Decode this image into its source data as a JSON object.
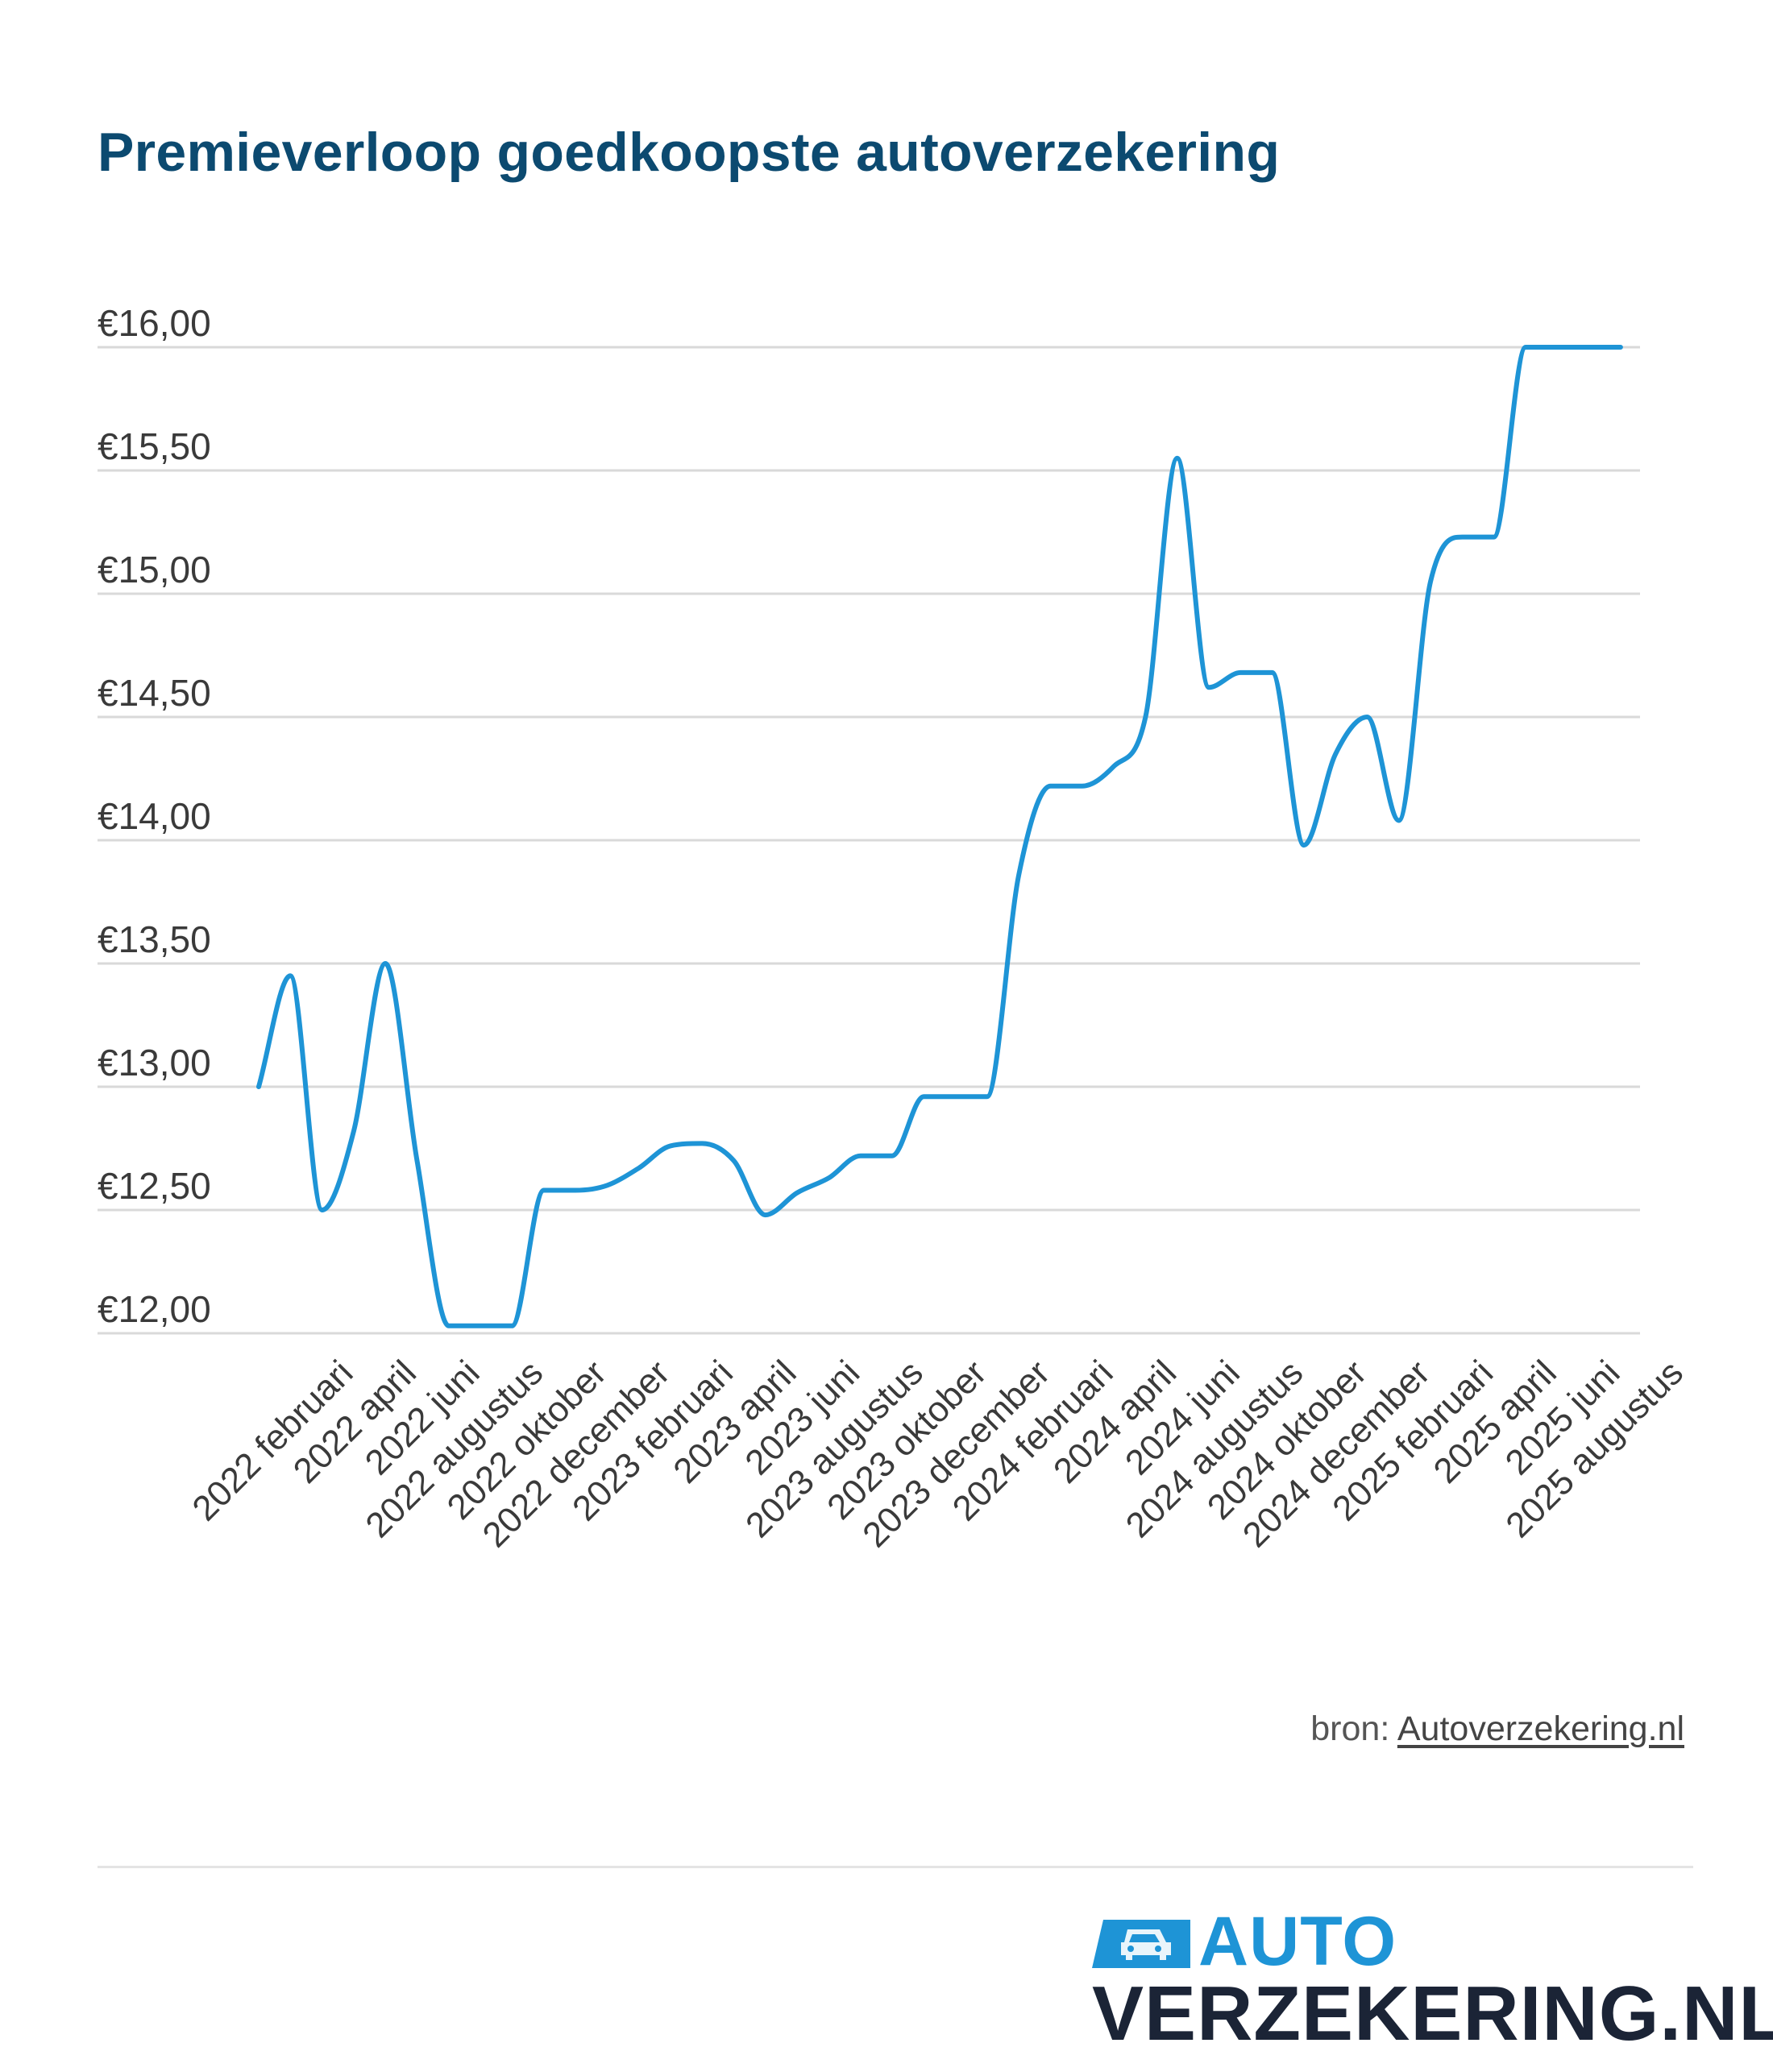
{
  "title": "Premieverloop goedkoopste autoverzekering",
  "source": {
    "prefix": "bron: ",
    "link": "Autoverzekering.nl"
  },
  "logo": {
    "top": "AUTO",
    "bottom": "VERZEKERING.NL"
  },
  "colors": {
    "title": "#0c4a70",
    "line": "#1e94d6",
    "grid": "#d9d9d9",
    "logo_dark": "#1b2436"
  },
  "chart_data": {
    "type": "line",
    "title": "Premieverloop goedkoopste autoverzekering",
    "xlabel": "",
    "ylabel": "",
    "ylim": [
      12.0,
      16.0
    ],
    "yticks": [
      12.0,
      12.5,
      13.0,
      13.5,
      14.0,
      14.5,
      15.0,
      15.5,
      16.0
    ],
    "ytick_labels": [
      "€12,00",
      "€12,50",
      "€13,00",
      "€13,50",
      "€14,00",
      "€14,50",
      "€15,00",
      "€15,50",
      "€16,00"
    ],
    "grid": true,
    "legend": "none",
    "tick_labels": [
      "2022 februari",
      "2022 april",
      "2022 juni",
      "2022 augustus",
      "2022 oktober",
      "2022 december",
      "2023 februari",
      "2023 april",
      "2023 juni",
      "2023 augustus",
      "2023 oktober",
      "2023 december",
      "2024 februari",
      "2024 april",
      "2024 juni",
      "2024 augustus",
      "2024 oktober",
      "2024 december",
      "2025 februari",
      "2025 april",
      "2025 juni",
      "2025 augustus"
    ],
    "x": [
      "2022 januari",
      "2022 februari",
      "2022 maart",
      "2022 april",
      "2022 mei",
      "2022 juni",
      "2022 juli",
      "2022 augustus",
      "2022 september",
      "2022 oktober",
      "2022 november",
      "2022 december",
      "2023 januari",
      "2023 februari",
      "2023 maart",
      "2023 april",
      "2023 mei",
      "2023 juni",
      "2023 juli",
      "2023 augustus",
      "2023 september",
      "2023 oktober",
      "2023 november",
      "2023 december",
      "2024 januari",
      "2024 februari",
      "2024 maart",
      "2024 april",
      "2024 mei",
      "2024 juni",
      "2024 juli",
      "2024 augustus",
      "2024 september",
      "2024 oktober",
      "2024 november",
      "2024 december",
      "2025 januari",
      "2025 februari",
      "2025 maart",
      "2025 april",
      "2025 mei",
      "2025 juni",
      "2025 juli",
      "2025 augustus"
    ],
    "series": [
      {
        "values": [
          13.0,
          13.45,
          12.5,
          12.82,
          13.5,
          12.7,
          12.03,
          12.03,
          12.03,
          12.58,
          12.58,
          12.6,
          12.67,
          12.76,
          12.77,
          12.7,
          12.48,
          12.57,
          12.63,
          12.72,
          12.72,
          12.96,
          12.96,
          12.96,
          13.86,
          14.22,
          14.22,
          14.3,
          14.5,
          15.55,
          14.62,
          14.68,
          14.68,
          13.98,
          14.35,
          14.5,
          14.08,
          15.05,
          15.23,
          15.23,
          16.0,
          16.0,
          16.0,
          16.0
        ]
      }
    ]
  }
}
